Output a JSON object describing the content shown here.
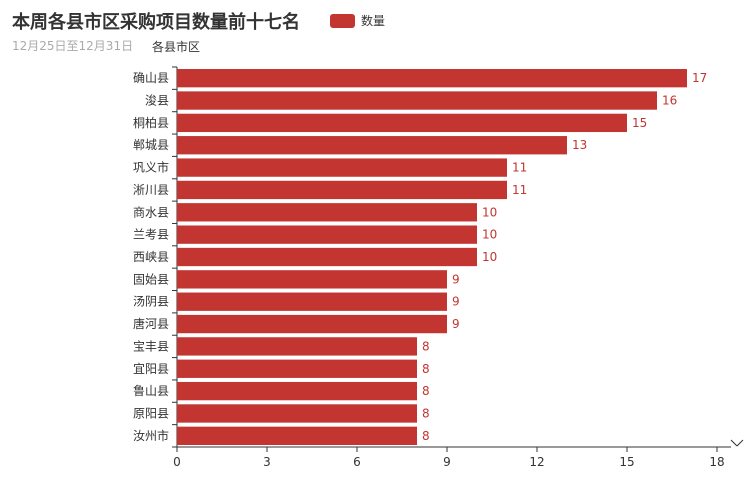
{
  "title": "本周各县市区采购项目数量前十七名",
  "subtitle": "12月25日至12月31日",
  "legend": {
    "label": "数量"
  },
  "colors": {
    "bar": "#c23531",
    "axis": "#333333",
    "text": "#333333"
  },
  "chart_data": {
    "type": "bar",
    "orientation": "horizontal",
    "ylabel": "各县市区",
    "categories": [
      "确山县",
      "浚县",
      "桐柏县",
      "郸城县",
      "巩义市",
      "淅川县",
      "商水县",
      "兰考县",
      "西峡县",
      "固始县",
      "汤阴县",
      "唐河县",
      "宝丰县",
      "宜阳县",
      "鲁山县",
      "原阳县",
      "汝州市"
    ],
    "series": [
      {
        "name": "数量",
        "values": [
          17,
          16,
          15,
          13,
          11,
          11,
          10,
          10,
          10,
          9,
          9,
          9,
          8,
          8,
          8,
          8,
          8
        ]
      }
    ],
    "xlim": [
      0,
      18
    ],
    "xticks": [
      0,
      3,
      6,
      9,
      12,
      15,
      18
    ],
    "grid": false,
    "legend_position": "top"
  }
}
